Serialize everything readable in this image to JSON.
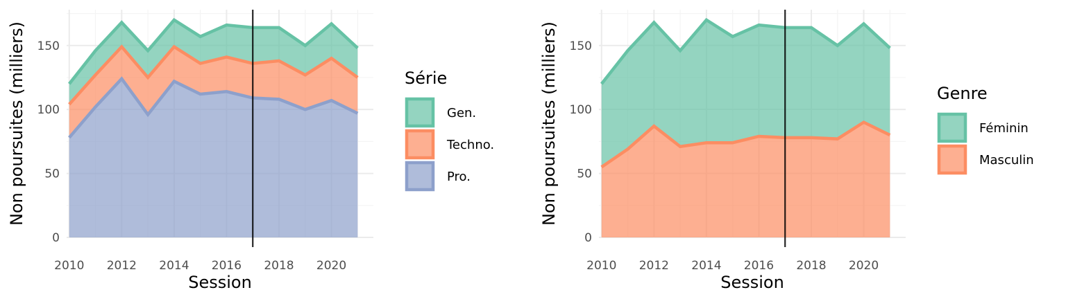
{
  "colors": {
    "green": "#66c2a5",
    "orange": "#fc8d62",
    "blue": "#8da0cb",
    "vline": "#000000"
  },
  "chart_data": [
    {
      "type": "area",
      "stacked": true,
      "x": [
        2010,
        2011,
        2012,
        2013,
        2014,
        2015,
        2016,
        2017,
        2018,
        2019,
        2020,
        2021
      ],
      "xlabel": "Session",
      "ylabel": "Non poursuites (milliers)",
      "xlim": [
        2009.9,
        2021.6
      ],
      "ylim": [
        0,
        178
      ],
      "xticks": [
        "2010",
        "2012",
        "2014",
        "2016",
        "2018",
        "2020"
      ],
      "yticks": [
        "0",
        "50",
        "100",
        "150"
      ],
      "vline": 2017,
      "legend_title": "Série",
      "legend_position": "right",
      "series": [
        {
          "name": "Pro.",
          "color": "#8da0cb",
          "values": [
            78,
            102,
            124,
            96,
            122,
            112,
            114,
            109,
            108,
            100,
            107,
            97
          ]
        },
        {
          "name": "Techno.",
          "color": "#fc8d62",
          "values": [
            26,
            25,
            25,
            29,
            27,
            24,
            27,
            27,
            30,
            27,
            33,
            28
          ]
        },
        {
          "name": "Gen.",
          "color": "#66c2a5",
          "values": [
            16,
            19,
            19,
            21,
            21,
            21,
            25,
            28,
            26,
            23,
            27,
            23
          ]
        }
      ]
    },
    {
      "type": "area",
      "stacked": true,
      "x": [
        2010,
        2011,
        2012,
        2013,
        2014,
        2015,
        2016,
        2017,
        2018,
        2019,
        2020,
        2021
      ],
      "xlabel": "Session",
      "ylabel": "Non poursuites (milliers)",
      "xlim": [
        2009.9,
        2021.6
      ],
      "ylim": [
        0,
        178
      ],
      "xticks": [
        "2010",
        "2012",
        "2014",
        "2016",
        "2018",
        "2020"
      ],
      "yticks": [
        "0",
        "50",
        "100",
        "150"
      ],
      "vline": 2017,
      "legend_title": "Genre",
      "legend_position": "right",
      "series": [
        {
          "name": "Masculin",
          "color": "#fc8d62",
          "values": [
            55,
            69,
            87,
            71,
            74,
            74,
            79,
            78,
            78,
            77,
            90,
            80
          ]
        },
        {
          "name": "Féminin",
          "color": "#66c2a5",
          "values": [
            65,
            77,
            81,
            75,
            96,
            83,
            87,
            86,
            86,
            73,
            77,
            68
          ]
        }
      ]
    }
  ]
}
